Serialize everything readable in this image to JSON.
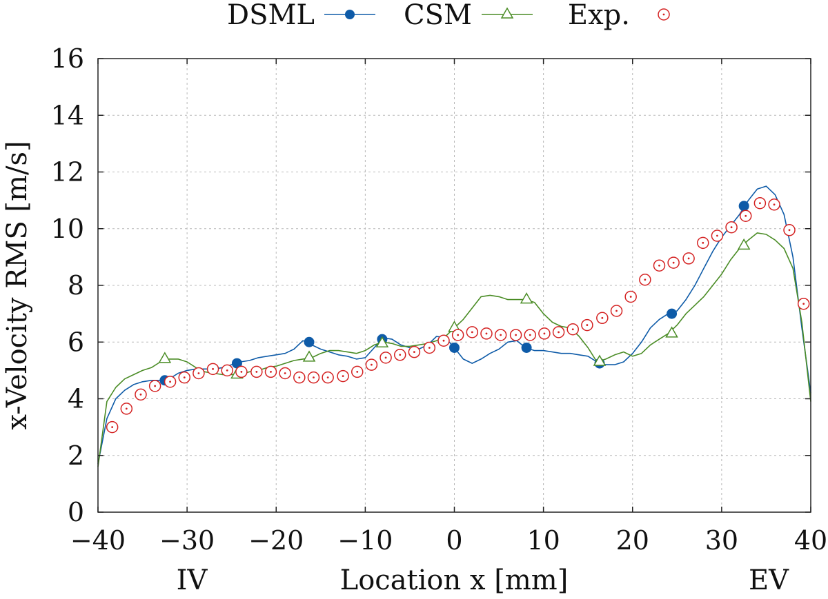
{
  "chart_data": {
    "type": "line",
    "title": "",
    "xlabel": "Location x [mm]",
    "ylabel": "x-Velocity RMS [m/s]",
    "xlim": [
      -40,
      40
    ],
    "ylim": [
      0,
      16
    ],
    "xticks": [
      -40,
      -30,
      -20,
      -10,
      0,
      10,
      20,
      30,
      40
    ],
    "xtick_labels": [
      "−40",
      "−30",
      "−20",
      "−10",
      "0",
      "10",
      "20",
      "30",
      "40"
    ],
    "yticks": [
      0,
      2,
      4,
      6,
      8,
      10,
      12,
      14,
      16
    ],
    "ytick_labels": [
      "0",
      "2",
      "4",
      "6",
      "8",
      "10",
      "12",
      "14",
      "16"
    ],
    "grid": true,
    "legend_position": "top",
    "annotations": [
      {
        "text": "IV",
        "x": -32
      },
      {
        "text": "EV",
        "x": 36
      }
    ],
    "series": [
      {
        "name": "DSML",
        "color": "#0e5ba8",
        "marker": "filled-circle",
        "line": [
          [
            -40,
            1.7
          ],
          [
            -39,
            3.3
          ],
          [
            -38,
            4.0
          ],
          [
            -37,
            4.3
          ],
          [
            -36,
            4.5
          ],
          [
            -35,
            4.6
          ],
          [
            -34,
            4.65
          ],
          [
            -33,
            4.65
          ],
          [
            -32,
            4.7
          ],
          [
            -31,
            4.9
          ],
          [
            -30,
            5.0
          ],
          [
            -29,
            5.05
          ],
          [
            -28,
            5.05
          ],
          [
            -27,
            5.05
          ],
          [
            -26,
            5.1
          ],
          [
            -25,
            5.2
          ],
          [
            -24,
            5.3
          ],
          [
            -23,
            5.35
          ],
          [
            -22,
            5.45
          ],
          [
            -21,
            5.5
          ],
          [
            -20,
            5.55
          ],
          [
            -19,
            5.6
          ],
          [
            -18,
            5.75
          ],
          [
            -17,
            6.05
          ],
          [
            -16,
            5.9
          ],
          [
            -15,
            5.75
          ],
          [
            -14,
            5.65
          ],
          [
            -13,
            5.55
          ],
          [
            -12,
            5.5
          ],
          [
            -11,
            5.4
          ],
          [
            -10,
            5.45
          ],
          [
            -9,
            5.8
          ],
          [
            -8,
            6.15
          ],
          [
            -7,
            6.1
          ],
          [
            -6,
            5.9
          ],
          [
            -5,
            5.8
          ],
          [
            -4,
            5.75
          ],
          [
            -3,
            5.9
          ],
          [
            -2,
            6.2
          ],
          [
            -1,
            6.15
          ],
          [
            0,
            5.8
          ],
          [
            1,
            5.4
          ],
          [
            2,
            5.25
          ],
          [
            3,
            5.4
          ],
          [
            4,
            5.6
          ],
          [
            5,
            5.75
          ],
          [
            6,
            6.0
          ],
          [
            7,
            6.05
          ],
          [
            8,
            5.8
          ],
          [
            9,
            5.7
          ],
          [
            10,
            5.7
          ],
          [
            11,
            5.65
          ],
          [
            12,
            5.6
          ],
          [
            13,
            5.6
          ],
          [
            14,
            5.55
          ],
          [
            15,
            5.5
          ],
          [
            16,
            5.3
          ],
          [
            17,
            5.2
          ],
          [
            18,
            5.2
          ],
          [
            19,
            5.3
          ],
          [
            20,
            5.6
          ],
          [
            21,
            6.0
          ],
          [
            22,
            6.5
          ],
          [
            23,
            6.8
          ],
          [
            24,
            7.0
          ],
          [
            25,
            7.1
          ],
          [
            26,
            7.5
          ],
          [
            27,
            8.0
          ],
          [
            28,
            8.6
          ],
          [
            29,
            9.2
          ],
          [
            30,
            9.7
          ],
          [
            31,
            10.1
          ],
          [
            32,
            10.5
          ],
          [
            33,
            11.0
          ],
          [
            34,
            11.4
          ],
          [
            35,
            11.5
          ],
          [
            36,
            11.2
          ],
          [
            37,
            10.5
          ],
          [
            38,
            9.0
          ],
          [
            39,
            6.5
          ],
          [
            40,
            4.2
          ]
        ],
        "markers": [
          [
            -32.5,
            4.65
          ],
          [
            -24.4,
            5.25
          ],
          [
            -16.3,
            6.0
          ],
          [
            -8.1,
            6.1
          ],
          [
            0,
            5.8
          ],
          [
            8.1,
            5.8
          ],
          [
            16.3,
            5.25
          ],
          [
            24.4,
            7.0
          ],
          [
            32.5,
            10.8
          ]
        ]
      },
      {
        "name": "CSM",
        "color": "#4a8c25",
        "marker": "open-triangle",
        "line": [
          [
            -40,
            1.6
          ],
          [
            -39,
            3.9
          ],
          [
            -38,
            4.4
          ],
          [
            -37,
            4.7
          ],
          [
            -36,
            4.85
          ],
          [
            -35,
            5.0
          ],
          [
            -34,
            5.1
          ],
          [
            -33,
            5.3
          ],
          [
            -32,
            5.4
          ],
          [
            -31,
            5.4
          ],
          [
            -30,
            5.3
          ],
          [
            -29,
            5.1
          ],
          [
            -28,
            4.95
          ],
          [
            -27,
            4.9
          ],
          [
            -26,
            4.85
          ],
          [
            -25,
            4.85
          ],
          [
            -24,
            4.85
          ],
          [
            -23,
            4.95
          ],
          [
            -22,
            5.0
          ],
          [
            -21,
            5.1
          ],
          [
            -20,
            5.15
          ],
          [
            -19,
            5.25
          ],
          [
            -18,
            5.35
          ],
          [
            -17,
            5.4
          ],
          [
            -16,
            5.45
          ],
          [
            -15,
            5.6
          ],
          [
            -14,
            5.7
          ],
          [
            -13,
            5.7
          ],
          [
            -12,
            5.65
          ],
          [
            -11,
            5.6
          ],
          [
            -10,
            5.7
          ],
          [
            -9,
            5.9
          ],
          [
            -8,
            6.0
          ],
          [
            -7,
            5.95
          ],
          [
            -6,
            5.85
          ],
          [
            -5,
            5.85
          ],
          [
            -4,
            5.9
          ],
          [
            -3,
            5.95
          ],
          [
            -2,
            6.05
          ],
          [
            -1,
            6.2
          ],
          [
            0,
            6.5
          ],
          [
            1,
            6.8
          ],
          [
            2,
            7.2
          ],
          [
            3,
            7.6
          ],
          [
            4,
            7.65
          ],
          [
            5,
            7.6
          ],
          [
            6,
            7.5
          ],
          [
            7,
            7.5
          ],
          [
            8,
            7.5
          ],
          [
            9,
            7.4
          ],
          [
            10,
            7.0
          ],
          [
            11,
            6.7
          ],
          [
            12,
            6.55
          ],
          [
            13,
            6.5
          ],
          [
            14,
            6.2
          ],
          [
            15,
            5.8
          ],
          [
            16,
            5.3
          ],
          [
            17,
            5.4
          ],
          [
            18,
            5.55
          ],
          [
            19,
            5.65
          ],
          [
            20,
            5.5
          ],
          [
            21,
            5.6
          ],
          [
            22,
            5.9
          ],
          [
            23,
            6.1
          ],
          [
            24,
            6.3
          ],
          [
            25,
            6.6
          ],
          [
            26,
            7.0
          ],
          [
            27,
            7.3
          ],
          [
            28,
            7.6
          ],
          [
            29,
            8.0
          ],
          [
            30,
            8.4
          ],
          [
            31,
            8.9
          ],
          [
            32,
            9.3
          ],
          [
            33,
            9.6
          ],
          [
            34,
            9.85
          ],
          [
            35,
            9.8
          ],
          [
            36,
            9.6
          ],
          [
            37,
            9.3
          ],
          [
            38,
            8.6
          ],
          [
            39,
            6.7
          ],
          [
            40,
            3.9
          ]
        ],
        "markers": [
          [
            -32.5,
            5.4
          ],
          [
            -24.4,
            4.85
          ],
          [
            -16.3,
            5.45
          ],
          [
            -8.1,
            5.95
          ],
          [
            0,
            6.5
          ],
          [
            8.1,
            7.5
          ],
          [
            16.3,
            5.3
          ],
          [
            24.4,
            6.3
          ],
          [
            32.5,
            9.4
          ]
        ]
      },
      {
        "name": "Exp.",
        "color": "#d42222",
        "marker": "open-circle-dot",
        "line": [],
        "markers": [
          [
            -38.4,
            3.0
          ],
          [
            -36.8,
            3.65
          ],
          [
            -35.2,
            4.15
          ],
          [
            -33.6,
            4.45
          ],
          [
            -31.9,
            4.6
          ],
          [
            -30.3,
            4.75
          ],
          [
            -28.7,
            4.9
          ],
          [
            -27.1,
            5.05
          ],
          [
            -25.5,
            5.0
          ],
          [
            -23.9,
            4.95
          ],
          [
            -22.2,
            4.95
          ],
          [
            -20.6,
            4.95
          ],
          [
            -19.0,
            4.9
          ],
          [
            -17.4,
            4.75
          ],
          [
            -15.8,
            4.75
          ],
          [
            -14.2,
            4.75
          ],
          [
            -12.5,
            4.8
          ],
          [
            -10.9,
            4.95
          ],
          [
            -9.3,
            5.2
          ],
          [
            -7.7,
            5.45
          ],
          [
            -6.1,
            5.55
          ],
          [
            -4.5,
            5.65
          ],
          [
            -2.8,
            5.8
          ],
          [
            -1.2,
            6.05
          ],
          [
            0.4,
            6.25
          ],
          [
            2.0,
            6.35
          ],
          [
            3.6,
            6.3
          ],
          [
            5.2,
            6.25
          ],
          [
            6.9,
            6.25
          ],
          [
            8.5,
            6.25
          ],
          [
            10.1,
            6.3
          ],
          [
            11.7,
            6.35
          ],
          [
            13.3,
            6.45
          ],
          [
            14.9,
            6.6
          ],
          [
            16.6,
            6.85
          ],
          [
            18.2,
            7.1
          ],
          [
            19.8,
            7.6
          ],
          [
            21.4,
            8.2
          ],
          [
            23.0,
            8.7
          ],
          [
            24.6,
            8.8
          ],
          [
            26.3,
            8.95
          ],
          [
            27.9,
            9.5
          ],
          [
            29.5,
            9.75
          ],
          [
            31.1,
            10.05
          ],
          [
            32.7,
            10.45
          ],
          [
            34.3,
            10.9
          ],
          [
            35.9,
            10.85
          ],
          [
            37.6,
            9.95
          ],
          [
            39.2,
            7.35
          ]
        ]
      }
    ]
  }
}
